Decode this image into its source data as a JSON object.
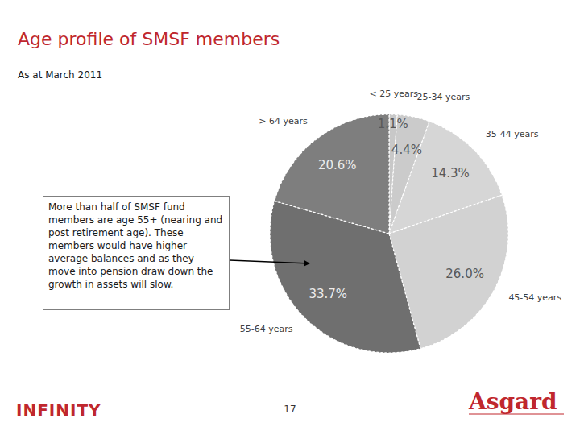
{
  "chart_data": {
    "type": "pie",
    "title": "Age profile of SMSF members",
    "subtitle": "As at March 2011",
    "categories": [
      "< 25 years",
      "25-34 years",
      "35-44 years",
      "45-54 years",
      "55-64 years",
      "> 64 years"
    ],
    "values": [
      1.1,
      4.4,
      14.3,
      26.0,
      33.7,
      20.6
    ],
    "value_labels": [
      "1.1%",
      "4.4%",
      "14.3%",
      "26.0%",
      "33.7%",
      "20.6%"
    ],
    "colors": [
      "#c8c8c8",
      "#cbcbcb",
      "#d6d6d6",
      "#d2d2d2",
      "#6f6f6f",
      "#7e7e7e"
    ],
    "data_labels": true,
    "annotation": "More than half of SMSF fund members are age 55+ (nearing and post retirement age). These members would have higher average balances and as they move into pension draw down the growth in assets will slow."
  },
  "page": {
    "number": "17",
    "logo_left": "INFINITY",
    "logo_right": "Asgard"
  }
}
